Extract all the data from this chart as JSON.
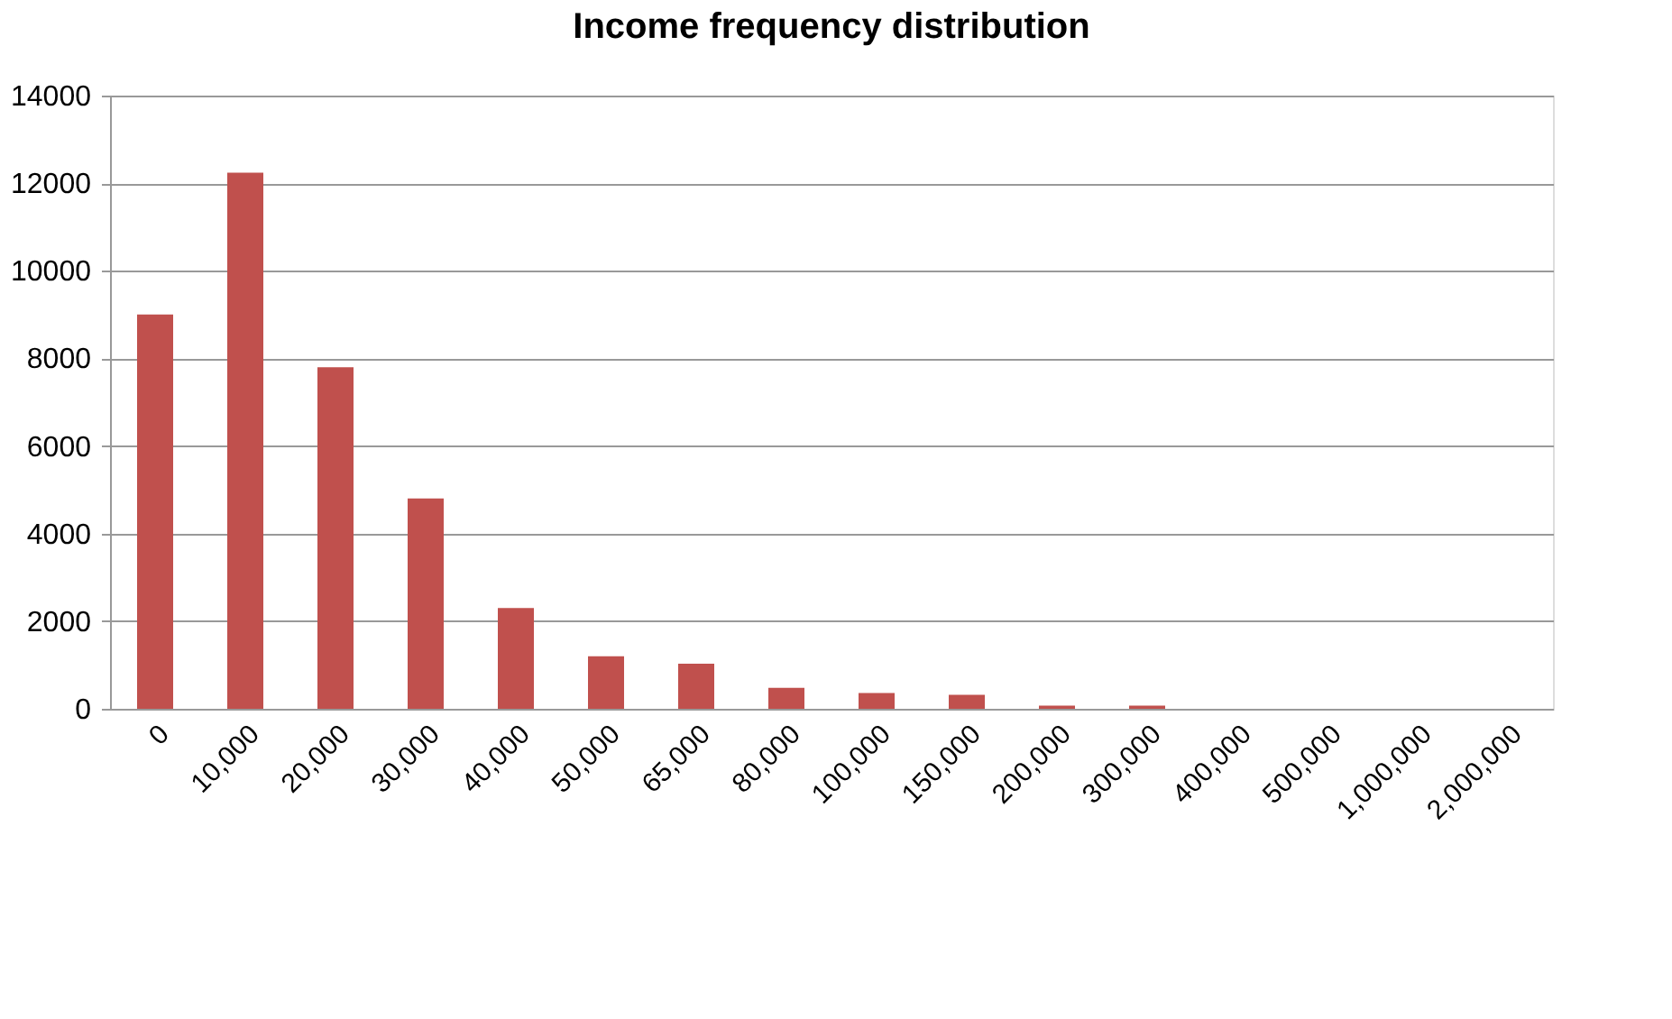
{
  "chart_data": {
    "type": "bar",
    "title": "Income frequency distribution",
    "categories": [
      "0",
      "10,000",
      "20,000",
      "30,000",
      "40,000",
      "50,000",
      "65,000",
      "80,000",
      "100,000",
      "150,000",
      "200,000",
      "300,000",
      "400,000",
      "500,000",
      "1,000,000",
      "2,000,000"
    ],
    "values": [
      9000,
      12240,
      7800,
      4800,
      2300,
      1200,
      1030,
      480,
      360,
      320,
      70,
      70,
      0,
      0,
      0,
      0
    ],
    "color": "#c0504d",
    "ylim": [
      0,
      14000
    ],
    "yticks": [
      0,
      2000,
      4000,
      6000,
      8000,
      10000,
      12000,
      14000
    ],
    "grid": "y"
  }
}
